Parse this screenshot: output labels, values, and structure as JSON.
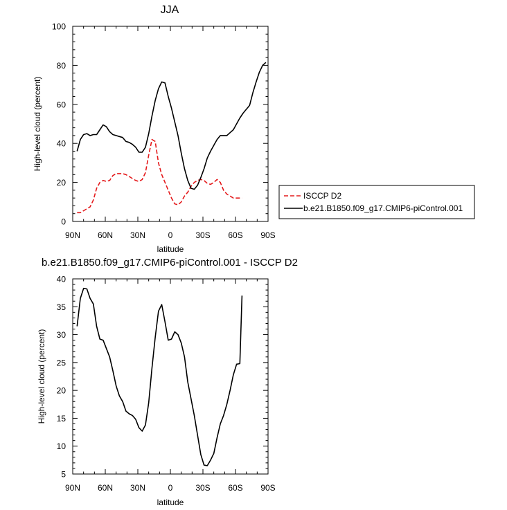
{
  "chart_data": [
    {
      "type": "line",
      "title": "JJA",
      "xlabel": "latitude",
      "ylabel": "High-level cloud (percent)",
      "xlim": [
        90,
        -90
      ],
      "ylim": [
        0,
        100
      ],
      "x_ticks": [
        {
          "value": 90,
          "label": "90N"
        },
        {
          "value": 60,
          "label": "60N"
        },
        {
          "value": 30,
          "label": "30N"
        },
        {
          "value": 0,
          "label": "0"
        },
        {
          "value": -30,
          "label": "30S"
        },
        {
          "value": -60,
          "label": "60S"
        },
        {
          "value": -90,
          "label": "90S"
        }
      ],
      "y_ticks": [
        0,
        20,
        40,
        60,
        80,
        100
      ],
      "legend_placement": "right",
      "series": [
        {
          "name": "ISCCP D2",
          "color": "#e41a1c",
          "dash": "dashed",
          "x": [
            86,
            83,
            80,
            77,
            74,
            71,
            68,
            65,
            62,
            59,
            56,
            53,
            50,
            47,
            44,
            41,
            38,
            35,
            32,
            29,
            26,
            23,
            20,
            17,
            14,
            11,
            8,
            5,
            2,
            -1,
            -4,
            -7,
            -10,
            -13,
            -16,
            -19,
            -22,
            -25,
            -28,
            -31,
            -34,
            -37,
            -40,
            -43,
            -46,
            -49,
            -52,
            -55,
            -58,
            -61,
            -64,
            -66
          ],
          "y": [
            4.5,
            4.5,
            5.5,
            6.5,
            7.5,
            11,
            17,
            20,
            21,
            20.5,
            21,
            23.5,
            24.5,
            24.5,
            24.5,
            24,
            23,
            22,
            21,
            20.5,
            21.5,
            25,
            34,
            42,
            41,
            30,
            24,
            20,
            16,
            12,
            9,
            8.5,
            10,
            13,
            15,
            18,
            20,
            21,
            21.5,
            21,
            19.5,
            19,
            20,
            21.5,
            20,
            16,
            14,
            13,
            12,
            12,
            12,
            12
          ]
        },
        {
          "name": "b.e21.B1850.f09_g17.CMIP6-piControl.001",
          "color": "#000000",
          "dash": "solid",
          "x": [
            86,
            83,
            80,
            77,
            74,
            71,
            68,
            65,
            62,
            59,
            56,
            53,
            50,
            47,
            44,
            41,
            38,
            35,
            32,
            29,
            26,
            23,
            20,
            17,
            14,
            11,
            8,
            5,
            2,
            -1,
            -4,
            -7,
            -10,
            -13,
            -16,
            -19,
            -22,
            -25,
            -28,
            -31,
            -34,
            -37,
            -40,
            -43,
            -46,
            -49,
            -52,
            -55,
            -58,
            -61,
            -64,
            -67,
            -70,
            -73,
            -76,
            -79,
            -82,
            -85,
            -88
          ],
          "y": [
            36,
            42,
            44.5,
            45,
            44,
            44.5,
            44.5,
            47,
            49.5,
            48.5,
            46,
            44.5,
            44,
            43.5,
            43,
            41,
            40.5,
            39.5,
            38,
            35.5,
            35.5,
            38,
            45,
            54,
            62,
            68,
            71.5,
            71,
            64,
            58,
            51,
            44,
            35,
            27,
            21,
            17,
            16.5,
            18.5,
            22.5,
            27,
            32.5,
            36,
            39,
            42,
            44,
            44,
            44,
            45.5,
            47,
            50,
            53,
            55.5,
            57.5,
            59.5,
            66,
            71.5,
            76.5,
            80,
            81.5
          ]
        }
      ]
    },
    {
      "type": "line",
      "title": "b.e21.B1850.f09_g17.CMIP6-piControl.001 - ISCCP D2",
      "xlabel": "latitude",
      "ylabel": "High-level cloud (percent)",
      "xlim": [
        90,
        -90
      ],
      "ylim": [
        5,
        40
      ],
      "x_ticks": [
        {
          "value": 90,
          "label": "90N"
        },
        {
          "value": 60,
          "label": "60N"
        },
        {
          "value": 30,
          "label": "30N"
        },
        {
          "value": 0,
          "label": "0"
        },
        {
          "value": -30,
          "label": "30S"
        },
        {
          "value": -60,
          "label": "60S"
        },
        {
          "value": -90,
          "label": "90S"
        }
      ],
      "y_ticks": [
        5,
        10,
        15,
        20,
        25,
        30,
        35,
        40
      ],
      "series": [
        {
          "color": "#000000",
          "dash": "solid",
          "x": [
            86,
            83,
            80,
            77,
            74,
            71,
            68,
            65,
            62,
            59,
            56,
            53,
            50,
            47,
            44,
            41,
            38,
            35,
            32,
            29,
            26,
            23,
            20,
            17,
            14,
            11,
            8,
            5,
            2,
            -1,
            -4,
            -7,
            -10,
            -13,
            -16,
            -19,
            -22,
            -25,
            -28,
            -31,
            -34,
            -37,
            -40,
            -43,
            -46,
            -49,
            -52,
            -55,
            -58,
            -61,
            -64,
            -66
          ],
          "y": [
            31.5,
            36.5,
            38.3,
            38.2,
            36.5,
            35.5,
            31.5,
            29.2,
            29,
            27.5,
            26,
            23.5,
            20.8,
            19,
            18,
            16.3,
            15.8,
            15.5,
            14.8,
            13.3,
            12.7,
            13.8,
            17.8,
            24,
            29.5,
            34.2,
            35.4,
            32.3,
            29,
            29.2,
            30.5,
            30,
            28.5,
            26,
            21.5,
            18.5,
            15.5,
            12,
            8.5,
            6.6,
            6.5,
            7.5,
            8.7,
            11.5,
            14,
            15.5,
            17.5,
            20,
            22.8,
            24.7,
            24.8,
            37
          ]
        }
      ]
    }
  ]
}
